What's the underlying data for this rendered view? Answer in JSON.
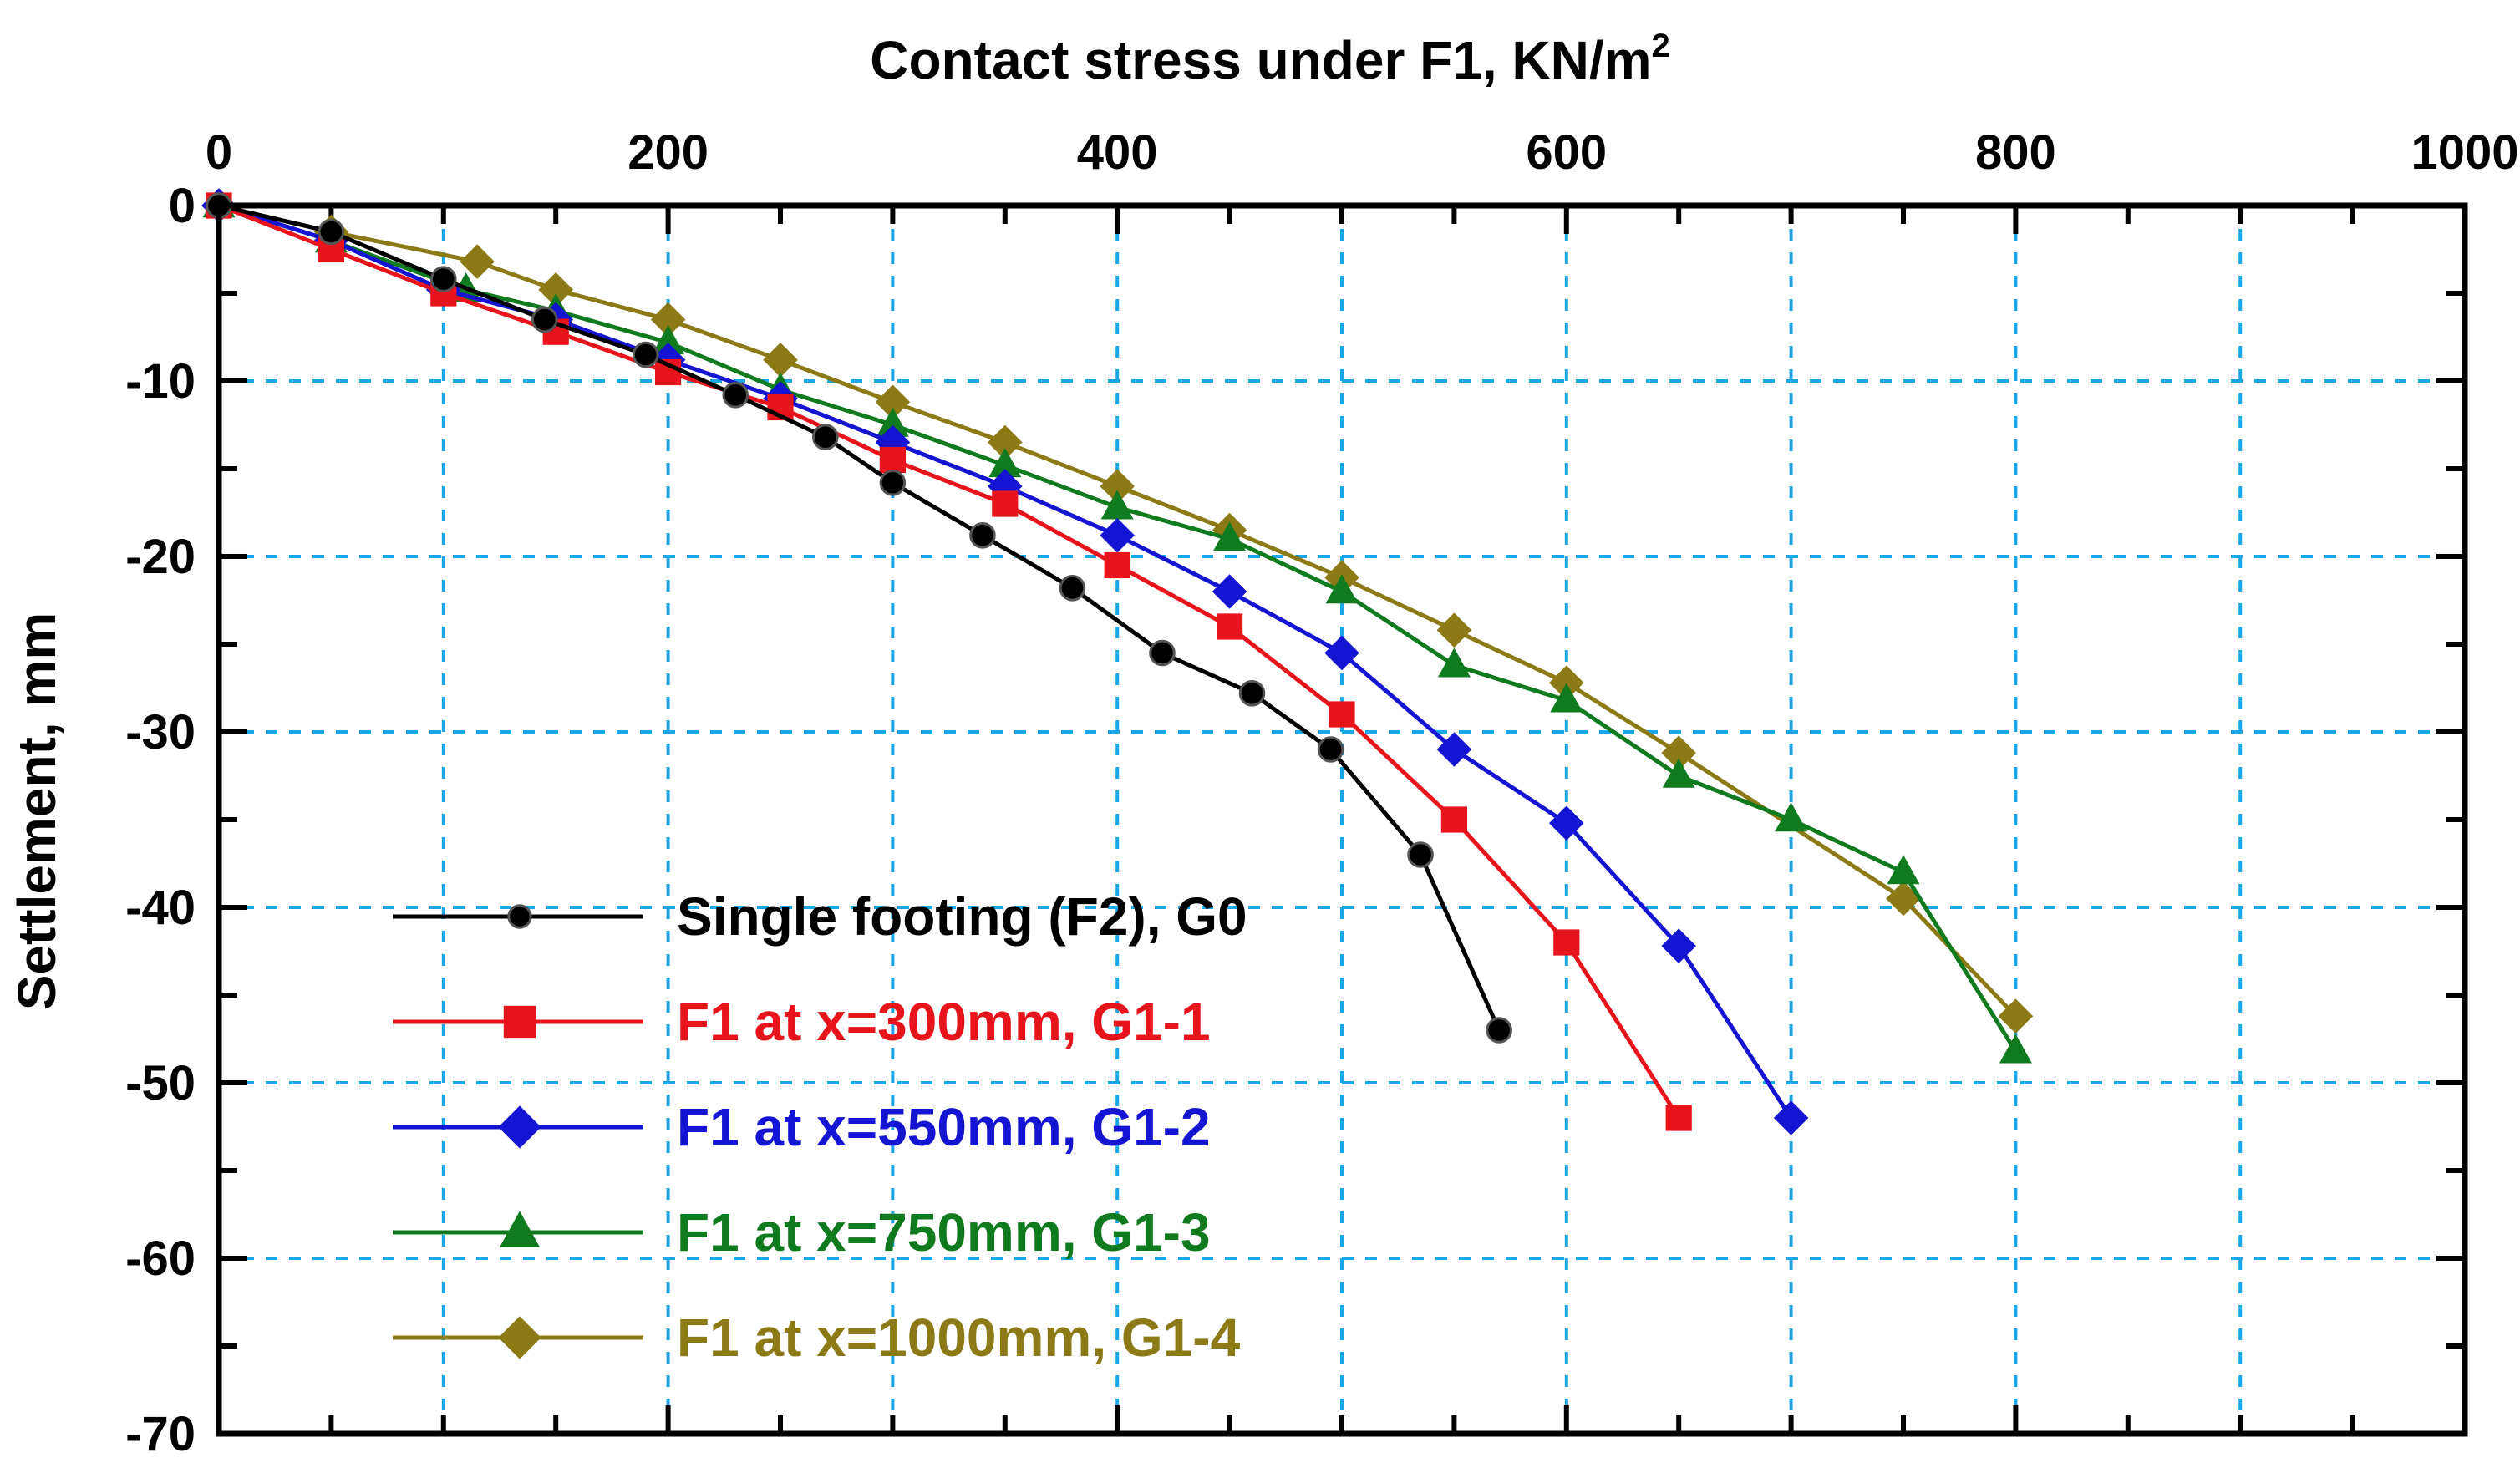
{
  "chart_data": {
    "type": "line",
    "title": "",
    "xlabel": "Contact  stress under F1, KN/m",
    "xlabel_superscript": "2",
    "ylabel": "Settlement, mm",
    "xlim": [
      0,
      1000
    ],
    "ylim": [
      -70,
      0
    ],
    "x_ticks": [
      0,
      200,
      400,
      600,
      800,
      1000
    ],
    "x_tick_labels": [
      "0",
      "200",
      "400",
      "600",
      "800",
      "1000"
    ],
    "y_ticks": [
      0,
      -10,
      -20,
      -30,
      -40,
      -50,
      -60,
      -70
    ],
    "y_tick_labels": [
      "0",
      "-10",
      "-20",
      "-30",
      "-40",
      "-50",
      "-60",
      "-70"
    ],
    "x_axis_position": "top",
    "grid": true,
    "legend_position": "lower-left",
    "series": [
      {
        "name": "Single footing (F2), G0",
        "color": "#000000",
        "marker": "circle",
        "x": [
          0,
          50,
          100,
          145,
          190,
          230,
          270,
          300,
          340,
          380,
          420,
          460,
          495,
          535,
          570
        ],
        "y": [
          0,
          -1.5,
          -4.2,
          -6.5,
          -8.5,
          -10.8,
          -13.2,
          -15.8,
          -18.8,
          -21.8,
          -25.5,
          -27.8,
          -31,
          -37,
          -47
        ]
      },
      {
        "name": "F1 at x=300mm, G1-1",
        "color": "#e8141c",
        "marker": "square",
        "x": [
          0,
          50,
          100,
          150,
          200,
          250,
          300,
          350,
          400,
          450,
          500,
          550,
          600,
          650
        ],
        "y": [
          0,
          -2.5,
          -5,
          -7.2,
          -9.5,
          -11.5,
          -14.5,
          -17,
          -20.5,
          -24,
          -29,
          -35,
          -42,
          -52
        ]
      },
      {
        "name": "F1 at x=550mm, G1-2",
        "color": "#1414d2",
        "marker": "diamond",
        "x": [
          0,
          50,
          100,
          150,
          200,
          250,
          300,
          350,
          400,
          450,
          500,
          550,
          600,
          650,
          700
        ],
        "y": [
          0,
          -2,
          -4.8,
          -6.5,
          -8.8,
          -11,
          -13.5,
          -16,
          -18.8,
          -22,
          -25.5,
          -31,
          -35.2,
          -42.2,
          -52
        ]
      },
      {
        "name": "F1 at x=750mm, G1-3",
        "color": "#0f7a1e",
        "marker": "triangle",
        "x": [
          0,
          50,
          110,
          150,
          200,
          250,
          300,
          350,
          400,
          450,
          500,
          550,
          600,
          650,
          700,
          750,
          800
        ],
        "y": [
          0,
          -2,
          -4.8,
          -6,
          -7.8,
          -10.5,
          -12.5,
          -14.8,
          -17.2,
          -19,
          -22,
          -26.2,
          -28.2,
          -32.5,
          -35,
          -38,
          -48.2
        ]
      },
      {
        "name": "F1 at x=1000mm, G1-4",
        "color": "#8b7a16",
        "marker": "diamond",
        "x": [
          0,
          50,
          115,
          150,
          200,
          250,
          300,
          350,
          400,
          450,
          500,
          550,
          600,
          650,
          750,
          800
        ],
        "y": [
          0,
          -1.5,
          -3.2,
          -4.8,
          -6.5,
          -8.8,
          -11.2,
          -13.5,
          -16,
          -18.5,
          -21.2,
          -24.2,
          -27.2,
          -31.2,
          -39.5,
          -46.2
        ]
      }
    ]
  }
}
